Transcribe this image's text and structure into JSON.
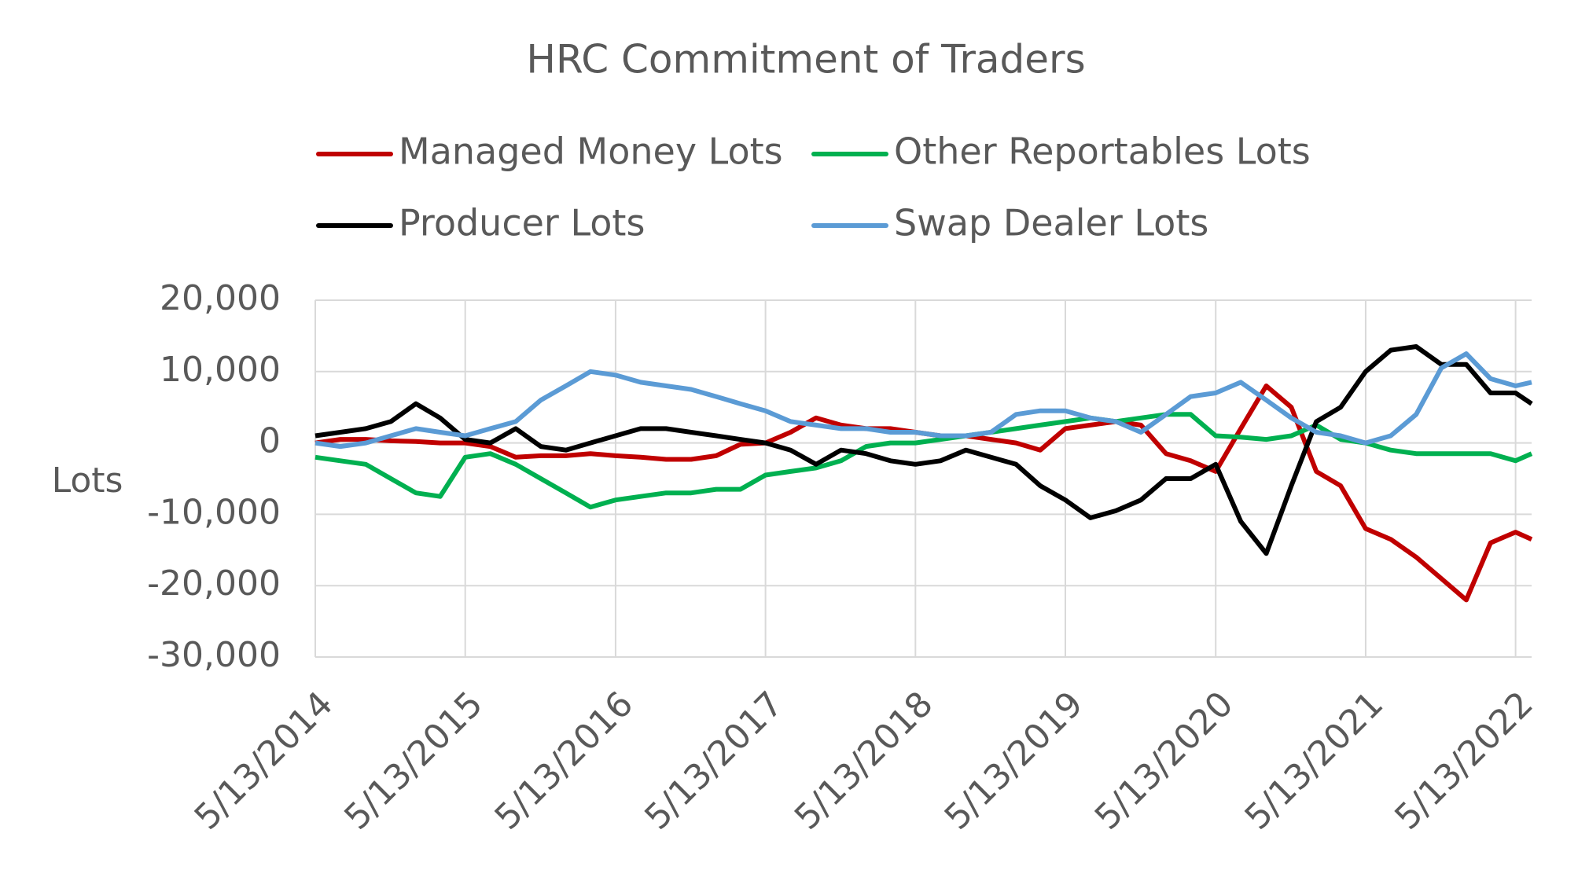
{
  "chart_data": {
    "type": "line",
    "title": "HRC Commitment of Traders",
    "y_label": "Lots",
    "x": [
      "2014-05-13",
      "2014-07-13",
      "2014-09-13",
      "2014-11-13",
      "2015-01-13",
      "2015-03-13",
      "2015-05-13",
      "2015-07-13",
      "2015-09-13",
      "2015-11-13",
      "2016-01-13",
      "2016-03-13",
      "2016-05-13",
      "2016-07-13",
      "2016-09-13",
      "2016-11-13",
      "2017-01-13",
      "2017-03-13",
      "2017-05-13",
      "2017-07-13",
      "2017-09-13",
      "2017-11-13",
      "2018-01-13",
      "2018-03-13",
      "2018-05-13",
      "2018-07-13",
      "2018-09-13",
      "2018-11-13",
      "2019-01-13",
      "2019-03-13",
      "2019-05-13",
      "2019-07-13",
      "2019-09-13",
      "2019-11-13",
      "2020-01-13",
      "2020-03-13",
      "2020-05-13",
      "2020-07-13",
      "2020-09-13",
      "2020-11-13",
      "2021-01-13",
      "2021-03-13",
      "2021-05-13",
      "2021-07-13",
      "2021-09-13",
      "2021-11-13",
      "2022-01-13",
      "2022-03-13",
      "2022-05-13",
      "2022-06-21"
    ],
    "series": [
      {
        "name": "Managed Money Lots",
        "color": "#c00000",
        "values": [
          0,
          500,
          500,
          300,
          200,
          0,
          0,
          -500,
          -2000,
          -1800,
          -1800,
          -1500,
          -1800,
          -2000,
          -2300,
          -2300,
          -1800,
          -200,
          0,
          1500,
          3500,
          2500,
          2000,
          2000,
          1500,
          1000,
          1000,
          500,
          0,
          -1000,
          2000,
          2500,
          3000,
          2500,
          -1500,
          -2500,
          -4000,
          2000,
          8000,
          5000,
          -4000,
          -6000,
          -12000,
          -13500,
          -16000,
          -19000,
          -22000,
          -14000,
          -12500,
          -13500
        ]
      },
      {
        "name": "Other Reportables Lots",
        "color": "#00b050",
        "values": [
          -2000,
          -2500,
          -3000,
          -5000,
          -7000,
          -7500,
          -2000,
          -1500,
          -3000,
          -5000,
          -7000,
          -9000,
          -8000,
          -7500,
          -7000,
          -7000,
          -6500,
          -6500,
          -4500,
          -4000,
          -3500,
          -2500,
          -500,
          0,
          0,
          500,
          1000,
          1500,
          2000,
          2500,
          3000,
          3500,
          3000,
          3500,
          4000,
          4000,
          1000,
          800,
          500,
          1000,
          2500,
          500,
          0,
          -1000,
          -1500,
          -1500,
          -1500,
          -1500,
          -2500,
          -1500
        ]
      },
      {
        "name": "Producer Lots",
        "color": "#000000",
        "values": [
          1000,
          1500,
          2000,
          3000,
          5500,
          3500,
          500,
          0,
          2000,
          -500,
          -1000,
          0,
          1000,
          2000,
          2000,
          1500,
          1000,
          500,
          0,
          -1000,
          -3000,
          -1000,
          -1500,
          -2500,
          -3000,
          -2500,
          -1000,
          -2000,
          -3000,
          -6000,
          -8000,
          -10500,
          -9500,
          -8000,
          -5000,
          -5000,
          -3000,
          -11000,
          -15500,
          -6000,
          3000,
          5000,
          10000,
          13000,
          13500,
          11000,
          11000,
          7000,
          7000,
          5500
        ]
      },
      {
        "name": "Swap Dealer Lots",
        "color": "#5b9bd5",
        "values": [
          0,
          -500,
          0,
          1000,
          2000,
          1500,
          1000,
          2000,
          3000,
          6000,
          8000,
          10000,
          9500,
          8500,
          8000,
          7500,
          6500,
          5500,
          4500,
          3000,
          2500,
          2000,
          2000,
          1500,
          1500,
          1000,
          1000,
          1500,
          4000,
          4500,
          4500,
          3500,
          3000,
          1500,
          4000,
          6500,
          7000,
          8500,
          6000,
          3500,
          1500,
          1000,
          0,
          1000,
          4000,
          10500,
          12500,
          9000,
          8000,
          8500
        ]
      }
    ],
    "xlim": [
      "2014-05-13",
      "2022-06-21"
    ],
    "xticks": [
      {
        "value": "2014-05-13",
        "label": "5/13/2014"
      },
      {
        "value": "2015-05-13",
        "label": "5/13/2015"
      },
      {
        "value": "2016-05-13",
        "label": "5/13/2016"
      },
      {
        "value": "2017-05-13",
        "label": "5/13/2017"
      },
      {
        "value": "2018-05-13",
        "label": "5/13/2018"
      },
      {
        "value": "2019-05-13",
        "label": "5/13/2019"
      },
      {
        "value": "2020-05-13",
        "label": "5/13/2020"
      },
      {
        "value": "2021-05-13",
        "label": "5/13/2021"
      },
      {
        "value": "2022-05-13",
        "label": "5/13/2022"
      }
    ],
    "ylim": [
      -30000,
      20000
    ],
    "yticks": [
      {
        "value": -30000,
        "label": "-30,000"
      },
      {
        "value": -20000,
        "label": "-20,000"
      },
      {
        "value": -10000,
        "label": "-10,000"
      },
      0,
      {
        "value": 10000,
        "label": "10,000"
      },
      {
        "value": 20000,
        "label": "20,000"
      }
    ],
    "grid": true
  }
}
